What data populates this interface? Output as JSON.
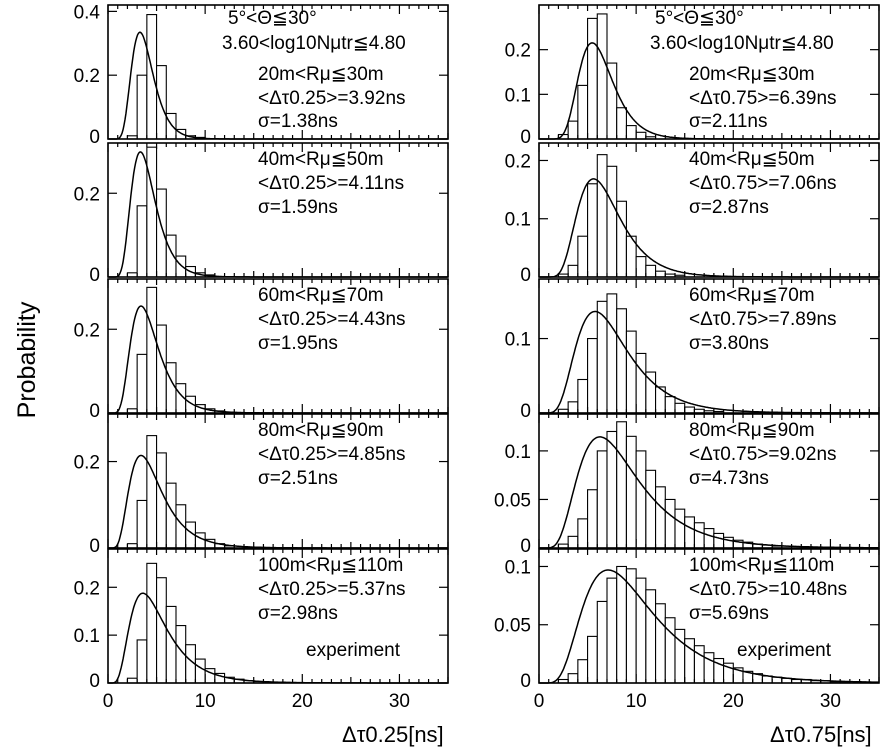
{
  "y_axis_label": "Probability",
  "header_lines": [
    "5°<Θ≦30°",
    "3.60<log10Nμtr≦4.80"
  ],
  "columns": [
    {
      "x_label": "Δτ0.25[ns]",
      "annotation_tag": "experiment"
    },
    {
      "x_label": "Δτ0.75[ns]",
      "annotation_tag": "experiment"
    }
  ],
  "chart_data": [
    {
      "type": "bar",
      "panel": "left-1",
      "subtitle": "20m<Rμ≦30m",
      "mean_text": "<Δτ0.25>=3.92ns",
      "sigma_text": "σ=1.38ns",
      "bin_width": 1,
      "x_start": 0,
      "xlim": [
        0,
        35
      ],
      "ylim": [
        0,
        0.42
      ],
      "yticks": [
        {
          "v": 0,
          "label": "0"
        },
        {
          "v": 0.2,
          "label": "0.2"
        },
        {
          "v": 0.4,
          "label": "0.4"
        }
      ],
      "values": [
        0,
        0,
        0.01,
        0.2,
        0.39,
        0.23,
        0.08,
        0.03,
        0.01,
        0.005
      ],
      "fit": {
        "mean": 3.92,
        "sigma": 1.38,
        "scale": 1
      }
    },
    {
      "type": "bar",
      "panel": "left-2",
      "subtitle": "40m<Rμ≦50m",
      "mean_text": "<Δτ0.25>=4.11ns",
      "sigma_text": "σ=1.59ns",
      "bin_width": 1,
      "x_start": 0,
      "xlim": [
        0,
        35
      ],
      "ylim": [
        0,
        0.32
      ],
      "yticks": [
        {
          "v": 0,
          "label": "0"
        },
        {
          "v": 0.2,
          "label": "0.2"
        }
      ],
      "values": [
        0,
        0,
        0.01,
        0.17,
        0.31,
        0.21,
        0.1,
        0.05,
        0.025,
        0.01,
        0.005
      ],
      "fit": {
        "mean": 4.11,
        "sigma": 1.59,
        "scale": 1
      }
    },
    {
      "type": "bar",
      "panel": "left-3",
      "subtitle": "60m<Rμ≦70m",
      "mean_text": "<Δτ0.25>=4.43ns",
      "sigma_text": "σ=1.95ns",
      "bin_width": 1,
      "x_start": 0,
      "xlim": [
        0,
        35
      ],
      "ylim": [
        0,
        0.32
      ],
      "yticks": [
        {
          "v": 0,
          "label": "0"
        },
        {
          "v": 0.2,
          "label": "0.2"
        }
      ],
      "values": [
        0,
        0,
        0.01,
        0.14,
        0.3,
        0.21,
        0.12,
        0.07,
        0.04,
        0.02,
        0.01,
        0.005
      ],
      "fit": {
        "mean": 4.43,
        "sigma": 1.95,
        "scale": 1
      }
    },
    {
      "type": "bar",
      "panel": "left-4",
      "subtitle": "80m<Rμ≦90m",
      "mean_text": "<Δτ0.25>=4.85ns",
      "sigma_text": "σ=2.51ns",
      "bin_width": 1,
      "x_start": 0,
      "xlim": [
        0,
        35
      ],
      "ylim": [
        0,
        0.31
      ],
      "yticks": [
        {
          "v": 0,
          "label": "0"
        },
        {
          "v": 0.2,
          "label": "0.2"
        }
      ],
      "values": [
        0,
        0,
        0.01,
        0.11,
        0.26,
        0.22,
        0.15,
        0.1,
        0.06,
        0.035,
        0.02,
        0.01,
        0.005
      ],
      "fit": {
        "mean": 4.85,
        "sigma": 2.51,
        "scale": 1
      }
    },
    {
      "type": "bar",
      "panel": "left-5",
      "subtitle": "100m<Rμ≦110m",
      "mean_text": "<Δτ0.25>=5.37ns",
      "sigma_text": "σ=2.98ns",
      "bin_width": 1,
      "x_start": 0,
      "xlim": [
        0,
        35
      ],
      "ylim": [
        0,
        0.28
      ],
      "yticks": [
        {
          "v": 0,
          "label": "0"
        },
        {
          "v": 0.1,
          "label": "0.1"
        },
        {
          "v": 0.2,
          "label": "0.2"
        }
      ],
      "xticks": [
        {
          "v": 0,
          "label": "0"
        },
        {
          "v": 10,
          "label": "10"
        },
        {
          "v": 20,
          "label": "20"
        },
        {
          "v": 30,
          "label": "30"
        }
      ],
      "values": [
        0,
        0,
        0.01,
        0.09,
        0.25,
        0.22,
        0.16,
        0.12,
        0.08,
        0.05,
        0.03,
        0.02,
        0.012,
        0.008,
        0.005,
        0.003
      ],
      "fit": {
        "mean": 5.37,
        "sigma": 2.98,
        "scale": 1
      },
      "tag": "experiment"
    },
    {
      "type": "bar",
      "panel": "right-1",
      "subtitle": "20m<Rμ≦30m",
      "mean_text": "<Δτ0.75>=6.39ns",
      "sigma_text": "σ=2.11ns",
      "bin_width": 1,
      "x_start": 0,
      "xlim": [
        0,
        35
      ],
      "ylim": [
        0,
        0.3
      ],
      "yticks": [
        {
          "v": 0,
          "label": "0"
        },
        {
          "v": 0.1,
          "label": "0.1"
        },
        {
          "v": 0.2,
          "label": "0.2"
        }
      ],
      "values": [
        0,
        0,
        0.01,
        0.04,
        0.12,
        0.27,
        0.28,
        0.17,
        0.07,
        0.03,
        0.015,
        0.005
      ],
      "fit": {
        "mean": 6.39,
        "sigma": 2.11,
        "scale": 1
      }
    },
    {
      "type": "bar",
      "panel": "right-2",
      "subtitle": "40m<Rμ≦50m",
      "mean_text": "<Δτ0.75>=7.06ns",
      "sigma_text": "σ=2.87ns",
      "bin_width": 1,
      "x_start": 0,
      "xlim": [
        0,
        35
      ],
      "ylim": [
        0,
        0.23
      ],
      "yticks": [
        {
          "v": 0,
          "label": "0"
        },
        {
          "v": 0.1,
          "label": "0.1"
        },
        {
          "v": 0.2,
          "label": "0.2"
        }
      ],
      "values": [
        0,
        0,
        0.005,
        0.02,
        0.07,
        0.16,
        0.21,
        0.19,
        0.13,
        0.07,
        0.035,
        0.02,
        0.01,
        0.005,
        0.003
      ],
      "fit": {
        "mean": 7.06,
        "sigma": 2.87,
        "scale": 1
      }
    },
    {
      "type": "bar",
      "panel": "right-3",
      "subtitle": "60m<Rμ≦70m",
      "mean_text": "<Δτ0.75>=7.89ns",
      "sigma_text": "σ=3.80ns",
      "bin_width": 1,
      "x_start": 0,
      "xlim": [
        0,
        35
      ],
      "ylim": [
        0,
        0.18
      ],
      "yticks": [
        {
          "v": 0,
          "label": "0"
        },
        {
          "v": 0.1,
          "label": "0.1"
        }
      ],
      "values": [
        0,
        0,
        0.005,
        0.015,
        0.045,
        0.1,
        0.15,
        0.16,
        0.14,
        0.11,
        0.08,
        0.055,
        0.035,
        0.022,
        0.013,
        0.008,
        0.005,
        0.003,
        0.002
      ],
      "fit": {
        "mean": 7.89,
        "sigma": 3.8,
        "scale": 1
      }
    },
    {
      "type": "bar",
      "panel": "right-4",
      "subtitle": "80m<Rμ≦90m",
      "mean_text": "<Δτ0.75>=9.02ns",
      "sigma_text": "σ=4.73ns",
      "bin_width": 1,
      "x_start": 0,
      "xlim": [
        0,
        35
      ],
      "ylim": [
        0,
        0.138
      ],
      "yticks": [
        {
          "v": 0,
          "label": "0"
        },
        {
          "v": 0.05,
          "label": "0.05"
        },
        {
          "v": 0.1,
          "label": "0.1"
        }
      ],
      "values": [
        0,
        0,
        0.004,
        0.012,
        0.03,
        0.06,
        0.1,
        0.12,
        0.13,
        0.115,
        0.1,
        0.08,
        0.063,
        0.05,
        0.04,
        0.032,
        0.026,
        0.02,
        0.015,
        0.011,
        0.008,
        0.006,
        0.004,
        0.003,
        0.002,
        0.002
      ],
      "fit": {
        "mean": 9.02,
        "sigma": 4.73,
        "scale": 1
      }
    },
    {
      "type": "bar",
      "panel": "right-5",
      "subtitle": "100m<Rμ≦110m",
      "mean_text": "<Δτ0.75>=10.48ns",
      "sigma_text": "σ=5.69ns",
      "bin_width": 1,
      "x_start": 0,
      "xlim": [
        0,
        35
      ],
      "ylim": [
        0,
        0.115
      ],
      "yticks": [
        {
          "v": 0,
          "label": "0"
        },
        {
          "v": 0.05,
          "label": "0.05"
        },
        {
          "v": 0.1,
          "label": "0.1"
        }
      ],
      "xticks": [
        {
          "v": 0,
          "label": "0"
        },
        {
          "v": 10,
          "label": "10"
        },
        {
          "v": 20,
          "label": "20"
        },
        {
          "v": 30,
          "label": "30"
        }
      ],
      "values": [
        0,
        0,
        0.003,
        0.008,
        0.02,
        0.04,
        0.07,
        0.09,
        0.1,
        0.098,
        0.09,
        0.08,
        0.068,
        0.056,
        0.046,
        0.038,
        0.032,
        0.026,
        0.021,
        0.017,
        0.013,
        0.01,
        0.008,
        0.006,
        0.005,
        0.004,
        0.003,
        0.003,
        0.002,
        0.002,
        0.001,
        0.001
      ],
      "fit": {
        "mean": 10.48,
        "sigma": 5.69,
        "scale": 1
      },
      "tag": "experiment"
    }
  ]
}
